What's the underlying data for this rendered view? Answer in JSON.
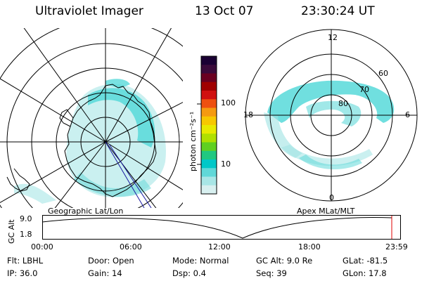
{
  "header": {
    "title": "Ultraviolet Imager",
    "date": "13 Oct 07",
    "time": "23:30:24 UT"
  },
  "left_map": {
    "caption": "Geographic Lat/Lon"
  },
  "right_map": {
    "caption": "Apex MLat/MLT",
    "mlt_labels": [
      "12",
      "18",
      "6",
      "0"
    ],
    "lat_labels": [
      "60",
      "70",
      "80"
    ]
  },
  "colorbar": {
    "unit_label": "photon cm⁻²s⁻¹",
    "ticks": [
      "100",
      "10"
    ],
    "colors": [
      "#1a0033",
      "#3a0a3a",
      "#6a0020",
      "#a00000",
      "#d01010",
      "#ee5010",
      "#f59a10",
      "#f7c800",
      "#e8ea00",
      "#b0e000",
      "#60d020",
      "#20c880",
      "#00c8c8",
      "#60d8d8",
      "#a8e6e6",
      "#d8f0f0"
    ]
  },
  "altitude_panel": {
    "ylabel": "GC Alt",
    "y_ticks": [
      "9.0",
      "1.8"
    ],
    "time_ticks": [
      "00:00",
      "06:00",
      "12:00",
      "18:00",
      "23:59"
    ],
    "current_marker_color": "#e00000"
  },
  "info": {
    "filt": "Flt: LBHL",
    "door": "Door: Open",
    "mode": "Mode: Normal",
    "gc_alt": "GC Alt: 9.0 Re",
    "glat": "GLat: -81.5",
    "ip": "IP: 36.0",
    "gain": "Gain: 14",
    "dsp": "Dsp:    0.4",
    "seq": "Seq: 39",
    "glon": "GLon:  17.8"
  }
}
